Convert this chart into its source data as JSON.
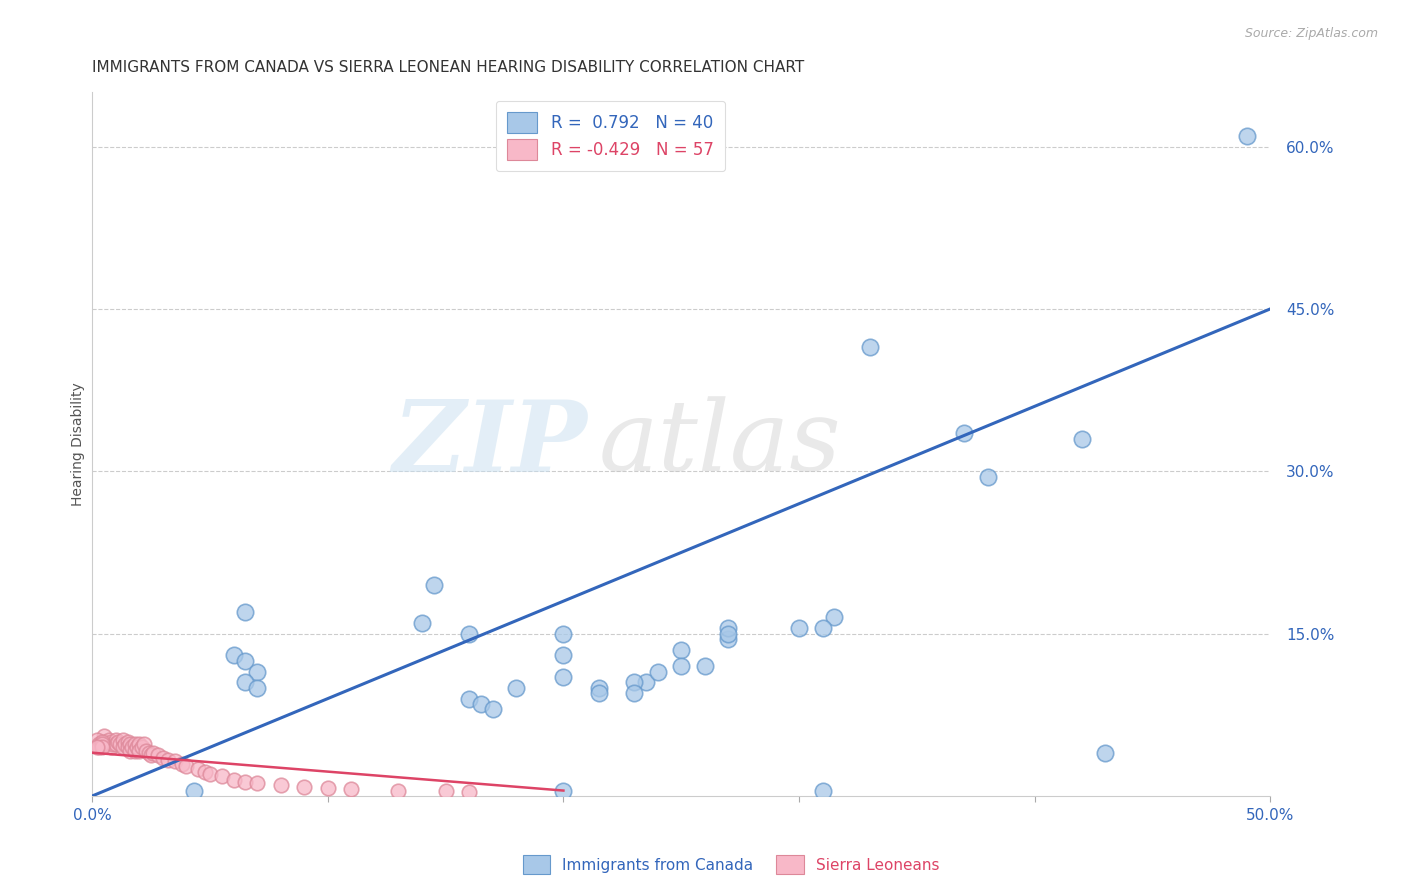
{
  "title": "IMMIGRANTS FROM CANADA VS SIERRA LEONEAN HEARING DISABILITY CORRELATION CHART",
  "source": "Source: ZipAtlas.com",
  "ylabel": "Hearing Disability",
  "xlim": [
    0.0,
    0.5
  ],
  "ylim": [
    0.0,
    0.65
  ],
  "xtick_labels": [
    "0.0%",
    "",
    "",
    "",
    "",
    "50.0%"
  ],
  "xtick_vals": [
    0.0,
    0.1,
    0.2,
    0.3,
    0.4,
    0.5
  ],
  "ytick_labels": [
    "15.0%",
    "30.0%",
    "45.0%",
    "60.0%"
  ],
  "ytick_vals": [
    0.15,
    0.3,
    0.45,
    0.6
  ],
  "grid_color": "#cccccc",
  "background_color": "#ffffff",
  "blue_color": "#a8c8e8",
  "blue_edge_color": "#6699cc",
  "blue_line_color": "#3366bb",
  "pink_color": "#f8b8c8",
  "pink_edge_color": "#dd8899",
  "pink_line_color": "#dd4466",
  "legend_R1": " 0.792",
  "legend_N1": "40",
  "legend_R2": "-0.429",
  "legend_N2": "57",
  "legend_label1": "Immigrants from Canada",
  "legend_label2": "Sierra Leoneans",
  "watermark_zip": "ZIP",
  "watermark_atlas": "atlas",
  "blue_line_x": [
    0.0,
    0.5
  ],
  "blue_line_y": [
    0.0,
    0.45
  ],
  "pink_line_x": [
    0.0,
    0.2
  ],
  "pink_line_y": [
    0.04,
    0.005
  ],
  "blue_scatter": [
    [
      0.49,
      0.61
    ],
    [
      0.33,
      0.415
    ],
    [
      0.37,
      0.335
    ],
    [
      0.42,
      0.33
    ],
    [
      0.38,
      0.295
    ],
    [
      0.27,
      0.145
    ],
    [
      0.2,
      0.15
    ],
    [
      0.16,
      0.15
    ],
    [
      0.145,
      0.195
    ],
    [
      0.14,
      0.16
    ],
    [
      0.27,
      0.155
    ],
    [
      0.3,
      0.155
    ],
    [
      0.315,
      0.165
    ],
    [
      0.25,
      0.135
    ],
    [
      0.25,
      0.12
    ],
    [
      0.26,
      0.12
    ],
    [
      0.235,
      0.105
    ],
    [
      0.24,
      0.115
    ],
    [
      0.2,
      0.13
    ],
    [
      0.2,
      0.11
    ],
    [
      0.215,
      0.1
    ],
    [
      0.215,
      0.095
    ],
    [
      0.23,
      0.105
    ],
    [
      0.23,
      0.095
    ],
    [
      0.27,
      0.15
    ],
    [
      0.31,
      0.155
    ],
    [
      0.16,
      0.09
    ],
    [
      0.165,
      0.085
    ],
    [
      0.18,
      0.1
    ],
    [
      0.17,
      0.08
    ],
    [
      0.065,
      0.17
    ],
    [
      0.06,
      0.13
    ],
    [
      0.065,
      0.125
    ],
    [
      0.07,
      0.115
    ],
    [
      0.065,
      0.105
    ],
    [
      0.07,
      0.1
    ],
    [
      0.043,
      0.005
    ],
    [
      0.2,
      0.005
    ],
    [
      0.31,
      0.005
    ],
    [
      0.43,
      0.04
    ]
  ],
  "pink_scatter": [
    [
      0.005,
      0.055
    ],
    [
      0.005,
      0.05
    ],
    [
      0.006,
      0.048
    ],
    [
      0.007,
      0.052
    ],
    [
      0.008,
      0.05
    ],
    [
      0.008,
      0.045
    ],
    [
      0.009,
      0.048
    ],
    [
      0.01,
      0.052
    ],
    [
      0.01,
      0.048
    ],
    [
      0.011,
      0.05
    ],
    [
      0.012,
      0.048
    ],
    [
      0.013,
      0.052
    ],
    [
      0.013,
      0.045
    ],
    [
      0.014,
      0.048
    ],
    [
      0.015,
      0.05
    ],
    [
      0.015,
      0.045
    ],
    [
      0.016,
      0.048
    ],
    [
      0.016,
      0.042
    ],
    [
      0.017,
      0.045
    ],
    [
      0.018,
      0.048
    ],
    [
      0.018,
      0.042
    ],
    [
      0.019,
      0.045
    ],
    [
      0.02,
      0.048
    ],
    [
      0.02,
      0.042
    ],
    [
      0.021,
      0.045
    ],
    [
      0.022,
      0.048
    ],
    [
      0.023,
      0.042
    ],
    [
      0.024,
      0.04
    ],
    [
      0.025,
      0.038
    ],
    [
      0.026,
      0.04
    ],
    [
      0.028,
      0.038
    ],
    [
      0.03,
      0.035
    ],
    [
      0.032,
      0.033
    ],
    [
      0.035,
      0.032
    ],
    [
      0.038,
      0.03
    ],
    [
      0.04,
      0.028
    ],
    [
      0.045,
      0.025
    ],
    [
      0.048,
      0.022
    ],
    [
      0.05,
      0.02
    ],
    [
      0.055,
      0.018
    ],
    [
      0.06,
      0.015
    ],
    [
      0.065,
      0.013
    ],
    [
      0.07,
      0.012
    ],
    [
      0.08,
      0.01
    ],
    [
      0.09,
      0.008
    ],
    [
      0.1,
      0.007
    ],
    [
      0.11,
      0.006
    ],
    [
      0.13,
      0.005
    ],
    [
      0.15,
      0.005
    ],
    [
      0.002,
      0.052
    ],
    [
      0.003,
      0.048
    ],
    [
      0.003,
      0.045
    ],
    [
      0.004,
      0.05
    ],
    [
      0.004,
      0.048
    ],
    [
      0.004,
      0.045
    ],
    [
      0.002,
      0.045
    ],
    [
      0.16,
      0.004
    ]
  ],
  "title_fontsize": 11,
  "axis_fontsize": 10,
  "tick_fontsize": 11,
  "source_fontsize": 9
}
